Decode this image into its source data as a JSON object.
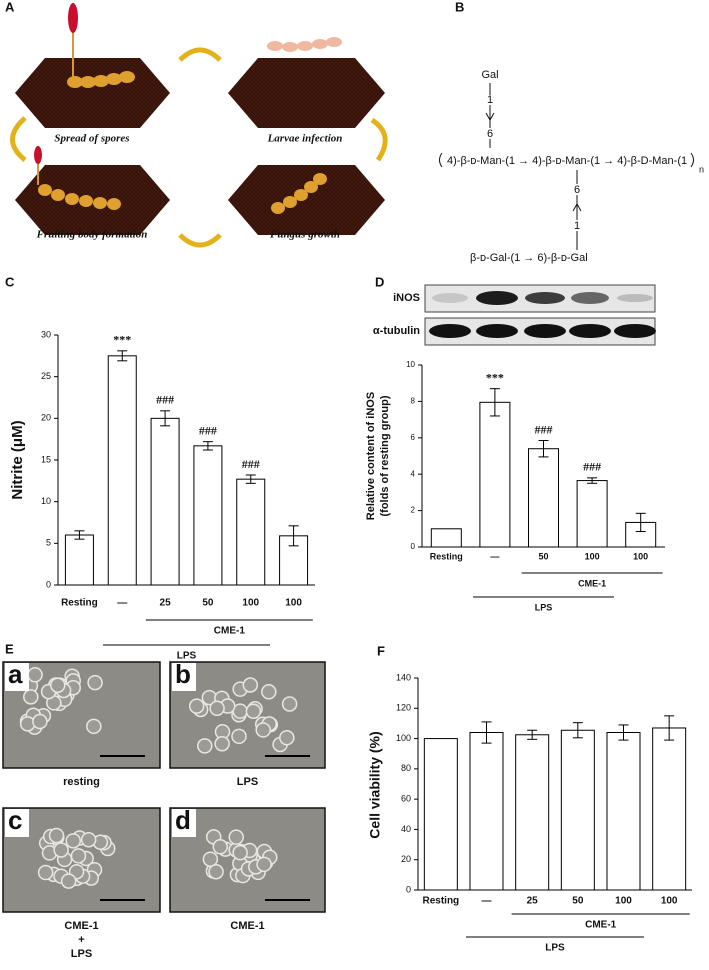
{
  "panel_labels": [
    "A",
    "B",
    "C",
    "D",
    "E",
    "F"
  ],
  "panel_a": {
    "captions": [
      "Spread of spores",
      "Larvae infection",
      "Fruiting body formation",
      "Fungus growth"
    ]
  },
  "panel_b": {
    "top_sugar": "Gal",
    "top_link_1": "1",
    "top_link_2": "6",
    "backbone": "4)-β-ᴅ-Man-(1 → 4)-β-ᴅ-Man-(1 → 4)-β-D-Man-(1",
    "repeat": "n",
    "bottom_link_1": "6",
    "bottom_link_2": "1",
    "bottom_chain": "β-ᴅ-Gal-(1 → 6)-β-ᴅ-Gal"
  },
  "panel_d_blot": {
    "rows": [
      "iNOS",
      "α-tubulin"
    ]
  },
  "panel_e": {
    "letters": [
      "a",
      "b",
      "c",
      "d"
    ],
    "captions": [
      [
        "resting"
      ],
      [
        "LPS"
      ],
      [
        "CME-1",
        "+",
        "LPS"
      ],
      [
        "CME-1"
      ]
    ]
  },
  "chart_data": [
    {
      "type": "bar",
      "ylabel": [
        "Nitrite (μM)"
      ],
      "categories": [
        "Resting",
        "—",
        "25",
        "50",
        "100",
        "100"
      ],
      "values": [
        6,
        27.5,
        20,
        16.7,
        12.7,
        5.9
      ],
      "errors": [
        0.5,
        0.6,
        0.9,
        0.5,
        0.5,
        1.2
      ],
      "annotations": [
        null,
        "***",
        "###",
        "###",
        "###",
        null
      ],
      "groups": [
        "CME-1",
        "LPS"
      ],
      "ylim": [
        0,
        30
      ],
      "yticks": [
        0,
        5,
        10,
        15,
        20,
        25,
        30
      ],
      "color": "#ffffff"
    },
    {
      "type": "bar",
      "ylabel": [
        "Relative content of iNOS",
        "(folds of resting group)"
      ],
      "categories": [
        "Resting",
        "—",
        "50",
        "100",
        "100"
      ],
      "values": [
        1,
        7.95,
        5.4,
        3.65,
        1.35
      ],
      "errors": [
        null,
        0.75,
        0.45,
        0.15,
        0.5
      ],
      "annotations": [
        null,
        "***",
        "###",
        "###",
        null
      ],
      "groups": [
        "CME-1",
        "LPS"
      ],
      "ylim": [
        0,
        10
      ],
      "yticks": [
        0,
        2,
        4,
        6,
        8,
        10
      ],
      "color": "#ffffff"
    },
    {
      "type": "bar",
      "ylabel": [
        "Cell viability (%)"
      ],
      "categories": [
        "Resting",
        "—",
        "25",
        "50",
        "100",
        "100"
      ],
      "values": [
        100,
        104,
        102.5,
        105.5,
        104,
        107
      ],
      "errors": [
        null,
        7,
        3,
        5,
        5,
        8
      ],
      "annotations": [
        null,
        null,
        null,
        null,
        null,
        null
      ],
      "groups": [
        "CME-1",
        "LPS"
      ],
      "ylim": [
        0,
        140
      ],
      "yticks": [
        0,
        20,
        40,
        60,
        80,
        100,
        120,
        140
      ],
      "color": "#ffffff"
    }
  ]
}
